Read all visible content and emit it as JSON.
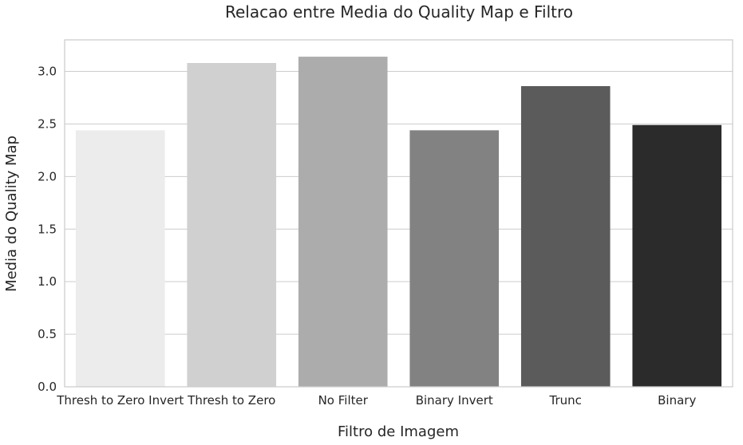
{
  "chart_data": {
    "type": "bar",
    "title": "Relacao entre Media do Quality Map e Filtro",
    "xlabel": "Filtro de Imagem",
    "ylabel": "Media do Quality Map",
    "categories": [
      "Thresh to Zero Invert",
      "Thresh to Zero",
      "No Filter",
      "Binary Invert",
      "Trunc",
      "Binary"
    ],
    "values": [
      2.44,
      3.08,
      3.14,
      2.44,
      2.86,
      2.49
    ],
    "colors": [
      "#ececec",
      "#d0d0d0",
      "#acacac",
      "#828282",
      "#5b5b5b",
      "#2b2b2b"
    ],
    "ylim": [
      0,
      3.3
    ],
    "yticks": [
      "0.0",
      "0.5",
      "1.0",
      "1.5",
      "2.0",
      "2.5",
      "3.0"
    ],
    "grid": true
  }
}
